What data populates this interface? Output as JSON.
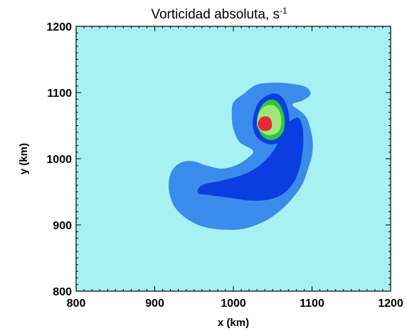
{
  "chart_data": {
    "type": "heatmap",
    "title": "Vorticidad absoluta, s",
    "title_superscript": "-1",
    "xlabel": "x (km)",
    "ylabel": "y (km)",
    "xlim": [
      800,
      1200
    ],
    "ylim": [
      800,
      1200
    ],
    "xticks": [
      "800",
      "900",
      "1000",
      "1100",
      "1200"
    ],
    "yticks": [
      "800",
      "900",
      "1000",
      "1100",
      "1200"
    ],
    "grid": false,
    "colors": {
      "background": "#a6f2f2",
      "level1": "#3b8bec",
      "level2": "#0a3ee0",
      "level3": "#2ec840",
      "level4": "#9ee87a",
      "core": "#e8283a"
    },
    "contours": [
      {
        "level": "level1",
        "path": [
          [
            1000,
            1085
          ],
          [
            1013,
            1098
          ],
          [
            1030,
            1112
          ],
          [
            1055,
            1115
          ],
          [
            1075,
            1113
          ],
          [
            1093,
            1108
          ],
          [
            1098,
            1097
          ],
          [
            1088,
            1088
          ],
          [
            1075,
            1082
          ],
          [
            1085,
            1072
          ],
          [
            1093,
            1062
          ],
          [
            1098,
            1045
          ],
          [
            1101,
            1025
          ],
          [
            1100,
            1005
          ],
          [
            1095,
            985
          ],
          [
            1088,
            962
          ],
          [
            1075,
            940
          ],
          [
            1058,
            920
          ],
          [
            1037,
            904
          ],
          [
            1012,
            894
          ],
          [
            985,
            893
          ],
          [
            960,
            898
          ],
          [
            940,
            910
          ],
          [
            926,
            926
          ],
          [
            919,
            946
          ],
          [
            918,
            966
          ],
          [
            923,
            984
          ],
          [
            935,
            995
          ],
          [
            950,
            996
          ],
          [
            965,
            990
          ],
          [
            985,
            985
          ],
          [
            1003,
            990
          ],
          [
            1017,
            1000
          ],
          [
            1025,
            1012
          ],
          [
            1008,
            1025
          ],
          [
            1000,
            1045
          ],
          [
            998,
            1065
          ]
        ]
      },
      {
        "level": "level2",
        "path": [
          [
            1025,
            1060
          ],
          [
            1032,
            1085
          ],
          [
            1048,
            1098
          ],
          [
            1060,
            1095
          ],
          [
            1068,
            1080
          ],
          [
            1071,
            1060
          ],
          [
            1069,
            1035
          ],
          [
            1060,
            1025
          ],
          [
            1045,
            1022
          ],
          [
            1032,
            1030
          ],
          [
            1026,
            1042
          ]
        ]
      },
      {
        "level": "level2",
        "path": [
          [
            1082,
            1062
          ],
          [
            1087,
            1052
          ],
          [
            1089,
            1035
          ],
          [
            1088,
            1010
          ],
          [
            1084,
            985
          ],
          [
            1076,
            963
          ],
          [
            1062,
            946
          ],
          [
            1043,
            938
          ],
          [
            1020,
            937
          ],
          [
            995,
            941
          ],
          [
            970,
            945
          ],
          [
            955,
            948
          ],
          [
            960,
            960
          ],
          [
            985,
            967
          ],
          [
            1010,
            975
          ],
          [
            1030,
            987
          ],
          [
            1045,
            1003
          ],
          [
            1055,
            1020
          ],
          [
            1062,
            1040
          ],
          [
            1070,
            1055
          ]
        ]
      },
      {
        "level": "level3",
        "path": [
          [
            1030,
            1058
          ],
          [
            1034,
            1076
          ],
          [
            1042,
            1087
          ],
          [
            1052,
            1089
          ],
          [
            1060,
            1080
          ],
          [
            1065,
            1062
          ],
          [
            1064,
            1043
          ],
          [
            1057,
            1032
          ],
          [
            1047,
            1028
          ],
          [
            1038,
            1033
          ],
          [
            1032,
            1044
          ]
        ]
      },
      {
        "level": "level4",
        "path": [
          [
            1030,
            1055
          ],
          [
            1033,
            1070
          ],
          [
            1040,
            1079
          ],
          [
            1050,
            1081
          ],
          [
            1058,
            1073
          ],
          [
            1061,
            1058
          ],
          [
            1059,
            1044
          ],
          [
            1052,
            1037
          ],
          [
            1043,
            1036
          ],
          [
            1036,
            1041
          ],
          [
            1031,
            1048
          ]
        ]
      },
      {
        "level": "core",
        "path": [
          [
            1031,
            1052
          ],
          [
            1034,
            1061
          ],
          [
            1040,
            1064
          ],
          [
            1046,
            1062
          ],
          [
            1049,
            1054
          ],
          [
            1048,
            1046
          ],
          [
            1042,
            1042
          ],
          [
            1035,
            1044
          ]
        ]
      }
    ]
  }
}
